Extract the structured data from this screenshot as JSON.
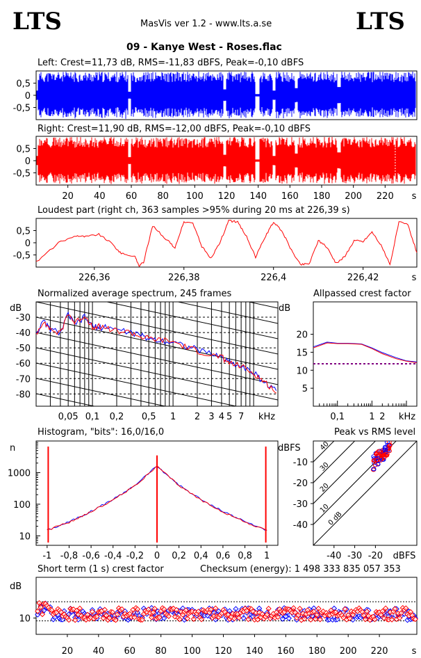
{
  "header": {
    "logo_left": "LTS",
    "logo_right": "LTS",
    "app_title": "MasVis ver 1.2 - www.lts.a.se",
    "file_title": "09 - Kanye West - Roses.flac"
  },
  "colors": {
    "left": "#0000ff",
    "right": "#ff0000",
    "dotted": "#800080"
  },
  "chart_data": [
    {
      "id": "left_waveform",
      "type": "area",
      "title": "Left: Crest=11,73 dB, RMS=-11,83 dBFS, Peak=-0,10 dBFS",
      "yticks": [
        "0,5",
        "0",
        "-0,5"
      ],
      "ylim": [
        -1,
        1
      ],
      "xlim": [
        0,
        240
      ],
      "series": [
        {
          "name": "Left",
          "color": "#0000ff"
        }
      ]
    },
    {
      "id": "right_waveform",
      "type": "area",
      "title": "Right: Crest=11,90 dB, RMS=-12,00 dBFS, Peak=-0,10 dBFS",
      "yticks": [
        "0,5",
        "0",
        "-0,5"
      ],
      "ylim": [
        -1,
        1
      ],
      "xlim": [
        0,
        240
      ],
      "xticks": [
        "20",
        "40",
        "60",
        "80",
        "100",
        "120",
        "140",
        "160",
        "180",
        "200",
        "220"
      ],
      "xunit": "s",
      "marker_at": 226.39,
      "series": [
        {
          "name": "Right",
          "color": "#ff0000"
        }
      ]
    },
    {
      "id": "loudest_part",
      "type": "line",
      "title": "Loudest part (right ch, 363 samples >95% during 20 ms at 226,39 s)",
      "yticks": [
        "0,5",
        "0",
        "-0,5"
      ],
      "ylim": [
        -1,
        1
      ],
      "xlim": [
        226.347,
        226.432
      ],
      "xticks": [
        "226,36",
        "226,38",
        "226,4",
        "226,42"
      ],
      "xunit": "s",
      "x": [
        226.347,
        226.352,
        226.356,
        226.358,
        226.361,
        226.364,
        226.366,
        226.369,
        226.37,
        226.371,
        226.373,
        226.376,
        226.378,
        226.38,
        226.382,
        226.384,
        226.386,
        226.388,
        226.39,
        226.392,
        226.394,
        226.396,
        226.398,
        226.4,
        226.402,
        226.404,
        226.406,
        226.408,
        226.41,
        226.412,
        226.414,
        226.416,
        226.418,
        226.42,
        226.422,
        226.424,
        226.426,
        226.428,
        226.43,
        226.432
      ],
      "values": [
        -0.8,
        0.0,
        0.3,
        0.25,
        0.35,
        -0.05,
        -0.45,
        -0.55,
        -0.95,
        -0.8,
        0.7,
        0.15,
        -0.2,
        0.85,
        0.8,
        -0.15,
        -0.65,
        0.0,
        0.9,
        0.85,
        0.25,
        -0.6,
        0.2,
        0.85,
        0.45,
        -0.3,
        -0.9,
        -0.85,
        0.1,
        -0.2,
        -0.85,
        -0.55,
        0.1,
        0.05,
        0.45,
        -0.1,
        -0.9,
        0.85,
        0.75,
        -0.4
      ]
    },
    {
      "id": "normalized_spectrum",
      "type": "line",
      "title": "Normalized average spectrum, 245 frames",
      "ylabel": "dB",
      "yticks": [
        "-30",
        "-40",
        "-50",
        "-60",
        "-70",
        "-80"
      ],
      "ylim": [
        -88,
        -20
      ],
      "xunit": "kHz",
      "xlog": true,
      "xlim": [
        0.02,
        20
      ],
      "xticks": [
        "0,05",
        "0,1",
        "0,2",
        "0,5",
        "1",
        "2",
        "3",
        "4",
        "5",
        "7"
      ],
      "x": [
        0.02,
        0.025,
        0.03,
        0.04,
        0.05,
        0.06,
        0.08,
        0.1,
        0.12,
        0.15,
        0.2,
        0.3,
        0.4,
        0.5,
        0.7,
        1,
        1.5,
        2,
        3,
        4,
        5,
        7,
        10,
        12,
        15,
        20
      ],
      "series": [
        {
          "name": "Left",
          "color": "#0000ff",
          "values": [
            -40,
            -33,
            -38,
            -40,
            -28,
            -35,
            -30,
            -36,
            -37,
            -36,
            -38,
            -40,
            -42,
            -44,
            -45,
            -46,
            -49,
            -51,
            -54,
            -56,
            -59,
            -62,
            -66,
            -70,
            -74,
            -79
          ]
        },
        {
          "name": "Right",
          "color": "#ff0000",
          "values": [
            -41,
            -32,
            -38,
            -41,
            -27,
            -34,
            -29,
            -36,
            -36,
            -37,
            -39,
            -40,
            -43,
            -44,
            -45,
            -46,
            -50,
            -52,
            -55,
            -56,
            -60,
            -62,
            -67,
            -70,
            -74,
            -80
          ]
        }
      ]
    },
    {
      "id": "allpassed_crest",
      "type": "line",
      "title": "Allpassed crest factor",
      "ylabel": "dB",
      "yticks": [
        "20",
        "15",
        "10",
        "5"
      ],
      "ylim": [
        0,
        29
      ],
      "xunit": "kHz",
      "xlog": true,
      "xlim": [
        0.02,
        20
      ],
      "xticks": [
        "0,1",
        "1",
        "2"
      ],
      "x": [
        0.02,
        0.05,
        0.1,
        0.2,
        0.5,
        1,
        2,
        5,
        10,
        20
      ],
      "reference_level": 11.8,
      "series": [
        {
          "name": "Left",
          "color": "#0000ff",
          "values": [
            16.5,
            17.8,
            17.5,
            17.5,
            17.3,
            16.2,
            14.9,
            13.5,
            12.6,
            12.3
          ]
        },
        {
          "name": "Right",
          "color": "#ff0000",
          "values": [
            16.2,
            17.6,
            17.4,
            17.4,
            17.2,
            16.0,
            14.6,
            13.2,
            12.5,
            12.1
          ]
        }
      ]
    },
    {
      "id": "histogram",
      "type": "line",
      "title": "Histogram, \"bits\": 16,0/16,0",
      "ylabel": "n",
      "ylog": true,
      "ylim": [
        5,
        10000
      ],
      "yticks": [
        "1000",
        "100",
        "10"
      ],
      "xlim": [
        -1.1,
        1.1
      ],
      "xticks": [
        "-1",
        "-0,8",
        "-0,6",
        "-0,4",
        "-0,2",
        "0",
        "0,2",
        "0,4",
        "0,6",
        "0,8",
        "1"
      ],
      "x": [
        -1,
        -0.8,
        -0.6,
        -0.4,
        -0.2,
        0,
        0.2,
        0.4,
        0.6,
        0.8,
        1
      ],
      "series": [
        {
          "name": "Left",
          "color": "#0000ff",
          "values": [
            15,
            28,
            60,
            140,
            400,
            1600,
            400,
            140,
            60,
            28,
            15
          ]
        },
        {
          "name": "Right",
          "color": "#ff0000",
          "values": [
            15,
            27,
            58,
            135,
            390,
            1550,
            390,
            135,
            58,
            27,
            15
          ]
        }
      ],
      "spikes": [
        -0.99,
        0.0,
        0.99
      ]
    },
    {
      "id": "peak_vs_rms",
      "type": "scatter",
      "title": "Peak vs RMS level",
      "ylabel": "dBFS",
      "xlabel": "dBFS",
      "xlim": [
        -50,
        0
      ],
      "ylim": [
        -50,
        0
      ],
      "yticks": [
        "-10",
        "-20",
        "-30",
        "-40"
      ],
      "xticks": [
        "-40",
        "-30",
        "-20"
      ],
      "diagonal_labels": [
        "40",
        "30",
        "20",
        "10",
        "0 dB"
      ]
    },
    {
      "id": "short_term_crest",
      "type": "scatter",
      "title": "Short term (1 s) crest factor",
      "checksum": "Checksum (energy):  1 498 333 835 057 353",
      "ylabel": "dB",
      "yticks": [
        "10"
      ],
      "ylim": [
        6,
        20
      ],
      "xlim": [
        0,
        244
      ],
      "xticks": [
        "20",
        "40",
        "60",
        "80",
        "100",
        "120",
        "140",
        "160",
        "180",
        "200",
        "220"
      ],
      "xunit": "s"
    }
  ]
}
